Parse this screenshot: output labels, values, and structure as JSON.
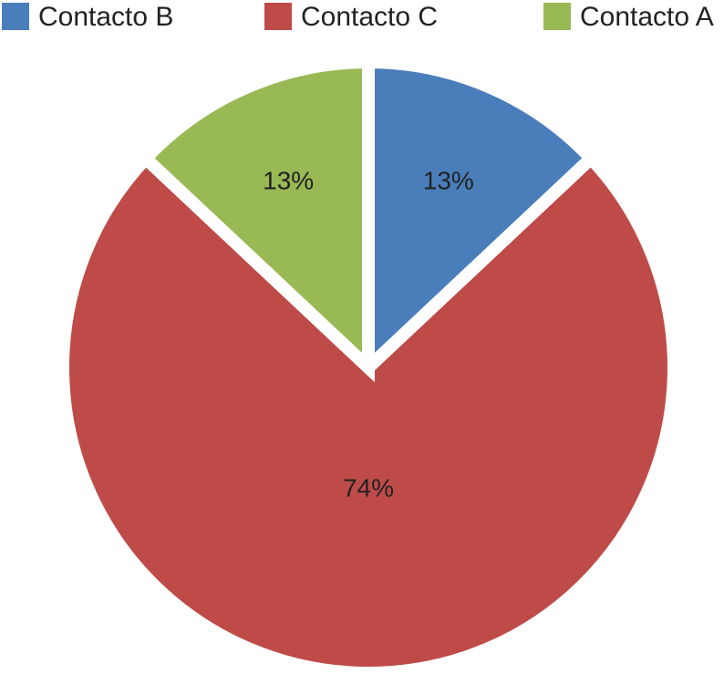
{
  "chart_data": {
    "type": "pie",
    "categories": [
      "Contacto B",
      "Contacto C",
      "Contacto A"
    ],
    "values": [
      13,
      74,
      13
    ],
    "value_labels": [
      "13%",
      "74%",
      "13%"
    ],
    "colors": [
      "#4a7ebb",
      "#be4b48",
      "#98b954"
    ],
    "legend": "top"
  }
}
